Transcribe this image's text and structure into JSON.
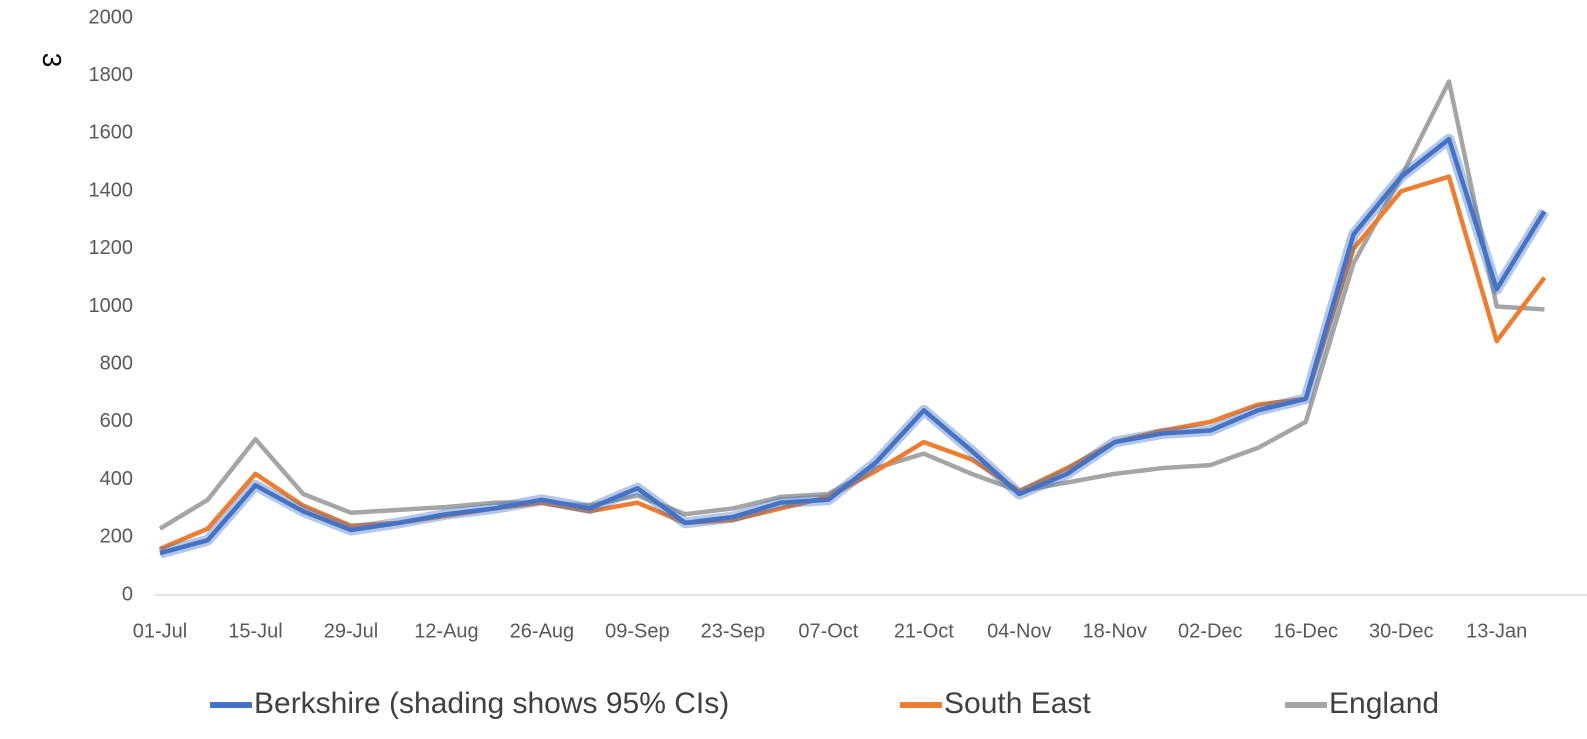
{
  "chart_data": {
    "type": "line",
    "ylabel": "3",
    "categories": [
      "01-Jul",
      null,
      "15-Jul",
      null,
      "29-Jul",
      null,
      "12-Aug",
      null,
      "26-Aug",
      null,
      "09-Sep",
      null,
      "23-Sep",
      null,
      "07-Oct",
      null,
      "21-Oct",
      null,
      "04-Nov",
      null,
      "18-Nov",
      null,
      "02-Dec",
      null,
      "16-Dec",
      null,
      "30-Dec",
      null,
      "13-Jan",
      null
    ],
    "series": [
      {
        "name": "Berkshire (shading shows 95% CIs)",
        "color": "#4472c4",
        "values": [
          145,
          190,
          380,
          290,
          225,
          250,
          280,
          300,
          330,
          300,
          370,
          250,
          270,
          320,
          330,
          460,
          640,
          500,
          350,
          420,
          530,
          560,
          570,
          640,
          680,
          1250,
          1450,
          1580,
          1060,
          1330
        ]
      },
      {
        "name": "South East",
        "color": "#ed7d31",
        "values": [
          160,
          230,
          420,
          310,
          240,
          250,
          275,
          300,
          320,
          290,
          320,
          250,
          260,
          300,
          340,
          430,
          530,
          470,
          360,
          440,
          530,
          570,
          600,
          660,
          680,
          1200,
          1400,
          1450,
          880,
          1100
        ]
      },
      {
        "name": "England",
        "color": "#a5a5a5",
        "values": [
          230,
          330,
          540,
          350,
          285,
          295,
          305,
          320,
          320,
          310,
          345,
          280,
          300,
          340,
          350,
          440,
          490,
          420,
          360,
          390,
          420,
          440,
          450,
          510,
          600,
          1150,
          1450,
          1780,
          1000,
          990
        ]
      }
    ],
    "ylim": [
      0,
      2000
    ],
    "yticks": [
      0,
      200,
      400,
      600,
      800,
      1000,
      1200,
      1400,
      1600,
      1800,
      2000
    ],
    "grid": false,
    "legend": "bottom"
  }
}
